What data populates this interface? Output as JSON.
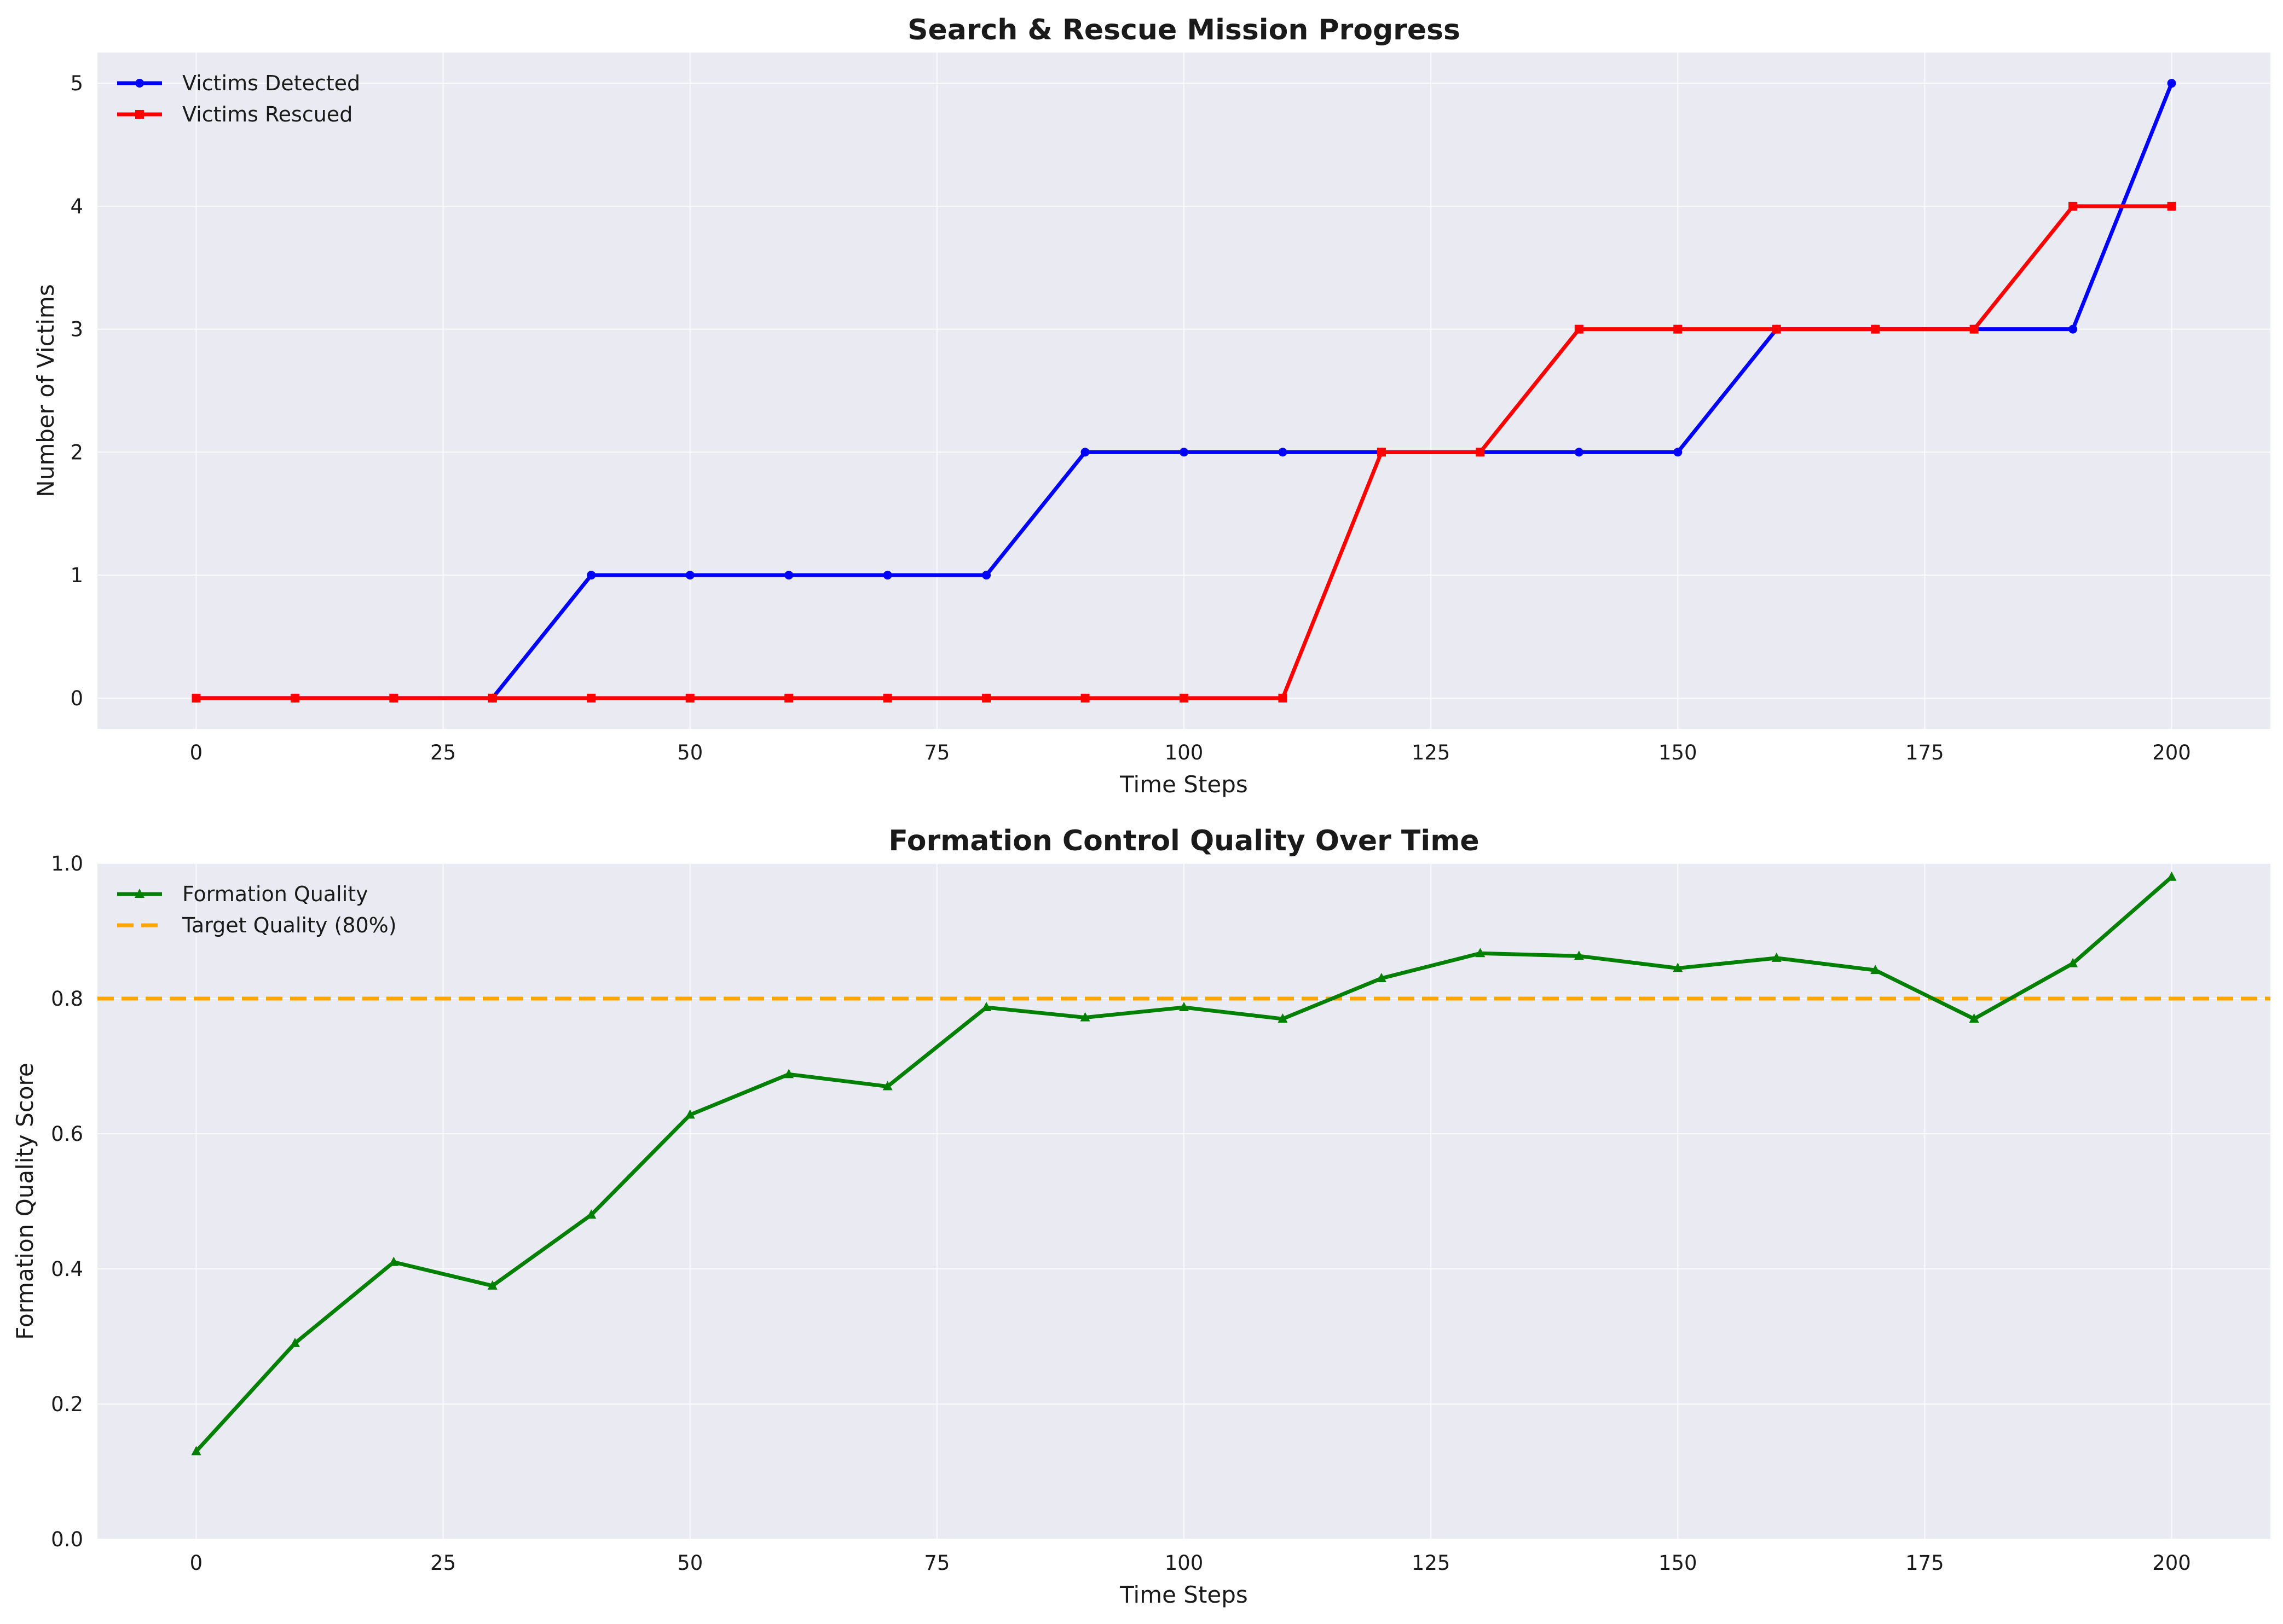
{
  "chart_data": [
    {
      "type": "line",
      "title": "Search & Rescue Mission Progress",
      "xlabel": "Time Steps",
      "ylabel": "Number of Victims",
      "xlim": [
        -10,
        210
      ],
      "ylim": [
        -0.25,
        5.25
      ],
      "xticks": [
        0,
        25,
        50,
        75,
        100,
        125,
        150,
        175,
        200
      ],
      "yticks": [
        0,
        1,
        2,
        3,
        4,
        5
      ],
      "grid": true,
      "legend_position": "top-left",
      "x": [
        0,
        10,
        20,
        30,
        40,
        50,
        60,
        70,
        80,
        90,
        100,
        110,
        120,
        130,
        140,
        150,
        160,
        170,
        180,
        190,
        200
      ],
      "series": [
        {
          "name": "Victims Detected",
          "color": "#0000ff",
          "marker": "circle",
          "values": [
            0,
            0,
            0,
            0,
            1,
            1,
            1,
            1,
            1,
            2,
            2,
            2,
            2,
            2,
            2,
            2,
            3,
            3,
            3,
            3,
            5
          ]
        },
        {
          "name": "Victims Rescued",
          "color": "#ff0000",
          "marker": "square",
          "values": [
            0,
            0,
            0,
            0,
            0,
            0,
            0,
            0,
            0,
            0,
            0,
            0,
            2,
            2,
            3,
            3,
            3,
            3,
            3,
            4,
            4
          ]
        }
      ]
    },
    {
      "type": "line",
      "title": "Formation Control Quality Over Time",
      "xlabel": "Time Steps",
      "ylabel": "Formation Quality Score",
      "xlim": [
        -10,
        210
      ],
      "ylim": [
        0,
        1.0
      ],
      "xticks": [
        0,
        25,
        50,
        75,
        100,
        125,
        150,
        175,
        200
      ],
      "yticks": [
        0.0,
        0.2,
        0.4,
        0.6,
        0.8,
        1.0
      ],
      "grid": true,
      "legend_position": "top-left",
      "x": [
        0,
        10,
        20,
        30,
        40,
        50,
        60,
        70,
        80,
        90,
        100,
        110,
        120,
        130,
        140,
        150,
        160,
        170,
        180,
        190,
        200
      ],
      "series": [
        {
          "name": "Formation Quality",
          "color": "#008000",
          "marker": "triangle",
          "values": [
            0.13,
            0.29,
            0.41,
            0.375,
            0.48,
            0.628,
            0.688,
            0.67,
            0.787,
            0.772,
            0.787,
            0.77,
            0.83,
            0.867,
            0.863,
            0.845,
            0.86,
            0.842,
            0.77,
            0.852,
            0.98
          ]
        }
      ],
      "reference_lines": [
        {
          "name": "Target Quality (80%)",
          "y": 0.8,
          "color": "#ffa500",
          "style": "dashed"
        }
      ]
    }
  ]
}
